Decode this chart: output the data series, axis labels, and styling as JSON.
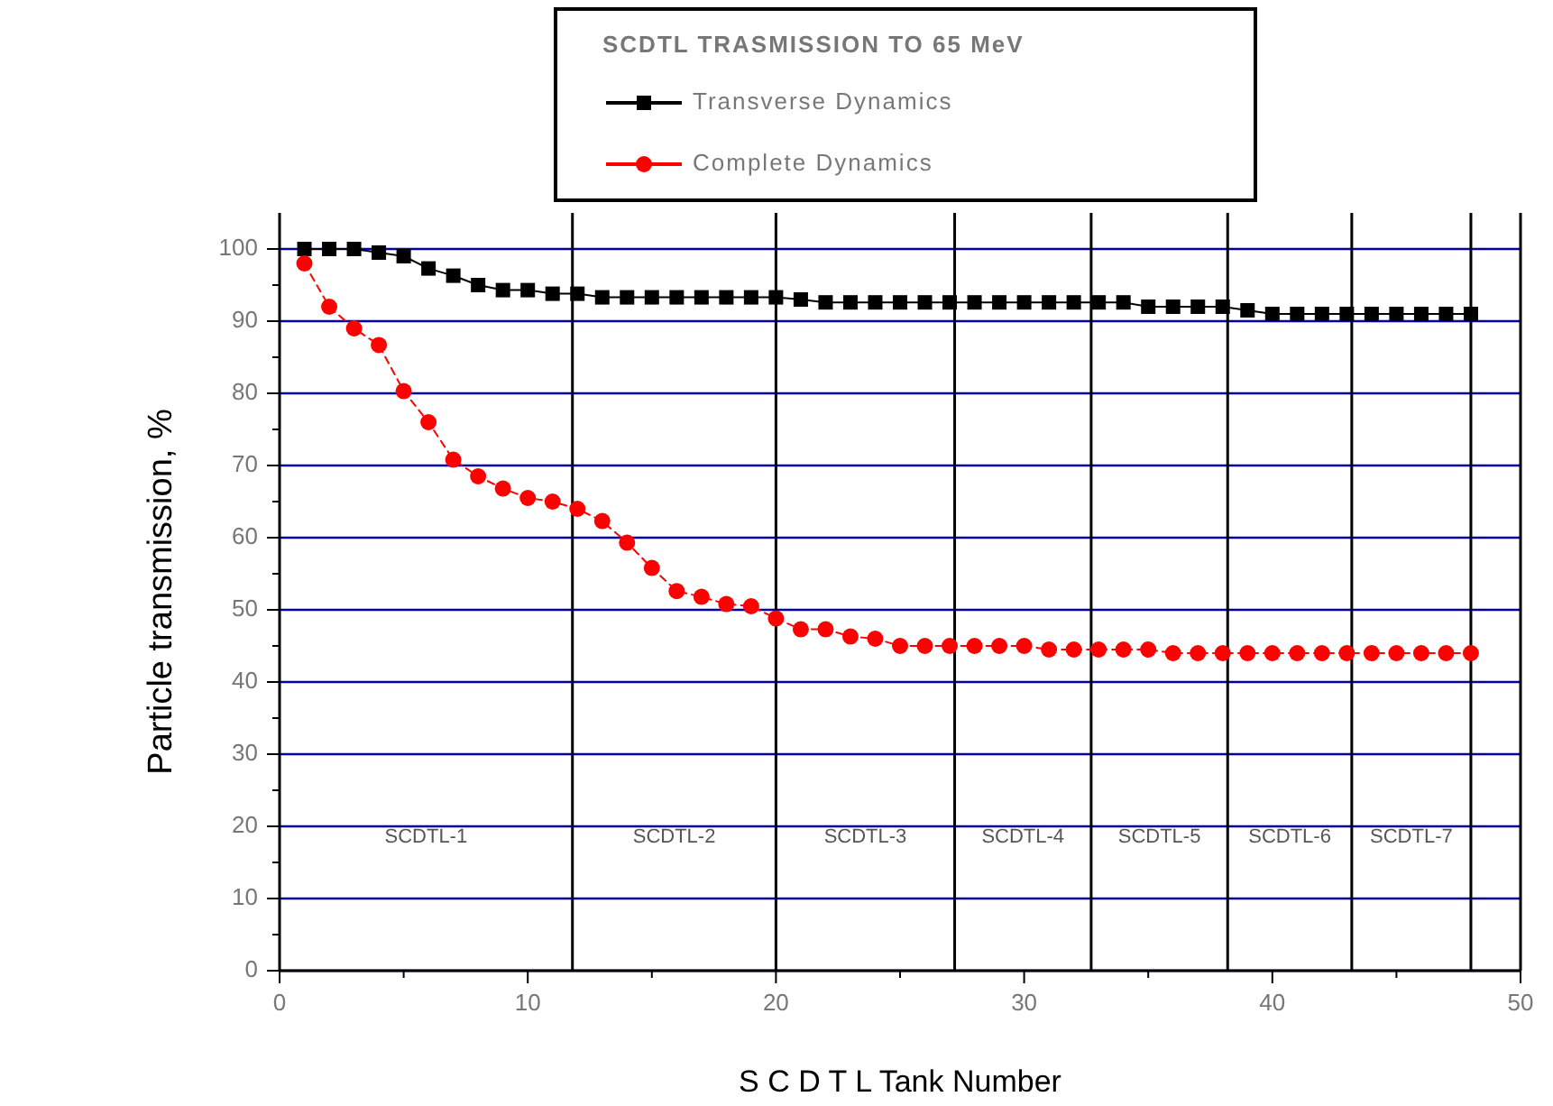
{
  "chart_data": {
    "type": "line",
    "xlabel": "S C D T L  Tank Number",
    "ylabel": "Particle transmission, %",
    "legend_title": "SCDTL TRASMISSION TO 65 MeV",
    "legend": "top",
    "grid": "y",
    "xlim": [
      0,
      50
    ],
    "xticks": [
      0,
      {
        "value": 5,
        "label": null
      },
      10,
      {
        "value": 15,
        "label": null
      },
      20,
      {
        "value": 25,
        "label": null
      },
      30,
      {
        "value": 35,
        "label": null
      },
      40,
      {
        "value": 45,
        "label": null
      },
      50
    ],
    "ylim": [
      0,
      105
    ],
    "yticks": [
      0,
      {
        "value": 5,
        "label": null
      },
      10,
      {
        "value": 15,
        "label": null
      },
      20,
      {
        "value": 25,
        "label": null
      },
      30,
      {
        "value": 35,
        "label": null
      },
      40,
      {
        "value": 45,
        "label": null
      },
      50,
      {
        "value": 55,
        "label": null
      },
      60,
      {
        "value": 65,
        "label": null
      },
      70,
      {
        "value": 75,
        "label": null
      },
      80,
      {
        "value": 85,
        "label": null
      },
      90,
      {
        "value": 95,
        "label": null
      },
      100
    ],
    "x": [
      1,
      2,
      3,
      4,
      5,
      6,
      7,
      8,
      9,
      10,
      11,
      12,
      13,
      14,
      15,
      16,
      17,
      18,
      19,
      20,
      21,
      22,
      23,
      24,
      25,
      26,
      27,
      28,
      29,
      30,
      31,
      32,
      33,
      34,
      35,
      36,
      37,
      38,
      39,
      40,
      41,
      42,
      43,
      44,
      45,
      46,
      47,
      48
    ],
    "series": [
      {
        "name": "Transverse Dynamics",
        "color": "#000000",
        "marker": "square",
        "line_style": "solid",
        "values": [
          100,
          100,
          100,
          99.5,
          99,
          97.3,
          96.3,
          95,
          94.3,
          94.3,
          93.8,
          93.8,
          93.3,
          93.3,
          93.3,
          93.3,
          93.3,
          93.3,
          93.3,
          93.3,
          93,
          92.6,
          92.6,
          92.6,
          92.6,
          92.6,
          92.6,
          92.6,
          92.6,
          92.6,
          92.6,
          92.6,
          92.6,
          92.6,
          92,
          92,
          92,
          92,
          91.5,
          91,
          91,
          91,
          91,
          91,
          91,
          91,
          91,
          91
        ]
      },
      {
        "name": "Complete Dynamics",
        "color": "#ff0000",
        "marker": "circle",
        "line_style": "dashed",
        "values": [
          98,
          92,
          89,
          86.7,
          80.3,
          76,
          70.8,
          68.5,
          66.8,
          65.5,
          65,
          64,
          62.3,
          59.3,
          55.8,
          52.6,
          51.8,
          50.8,
          50.5,
          48.8,
          47.3,
          47.3,
          46.3,
          46,
          45,
          45,
          45,
          45,
          45,
          45,
          44.5,
          44.5,
          44.5,
          44.5,
          44.5,
          44,
          44,
          44,
          44,
          44,
          44,
          44,
          44,
          44,
          44,
          44,
          44,
          44
        ]
      }
    ],
    "ref_lines": [
      {
        "axis": "x",
        "value": 11.8,
        "color": "#000000"
      },
      {
        "axis": "x",
        "value": 20,
        "color": "#000000"
      },
      {
        "axis": "x",
        "value": 27.2,
        "color": "#000000"
      },
      {
        "axis": "x",
        "value": 32.7,
        "color": "#000000"
      },
      {
        "axis": "x",
        "value": 38.2,
        "color": "#000000"
      },
      {
        "axis": "x",
        "value": 43.2,
        "color": "#000000"
      },
      {
        "axis": "x",
        "value": 48,
        "color": "#000000"
      }
    ],
    "annotations": [
      "SCDTL-1",
      "SCDTL-2",
      "SCDTL-3",
      "SCDTL-4",
      "SCDTL-5",
      "SCDTL-6",
      "SCDTL-7"
    ]
  }
}
